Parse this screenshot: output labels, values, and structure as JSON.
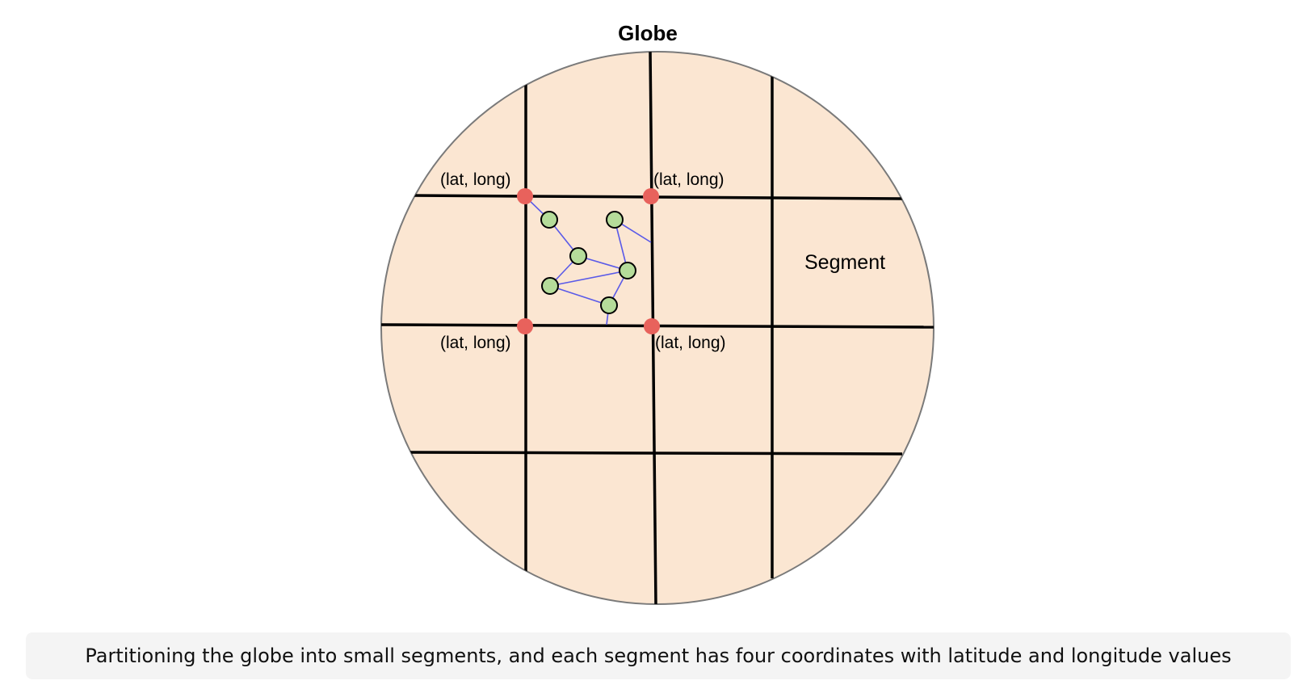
{
  "title": "Globe",
  "segment_label": "Segment",
  "corner_labels": [
    "(lat, long)",
    "(lat, long)",
    "(lat, long)",
    "(lat, long)"
  ],
  "caption": "Partitioning the globe into small segments, and each segment has four coordinates with latitude and longitude values",
  "colors": {
    "globe_fill": "#fbe6d2",
    "globe_stroke": "#7a7a7a",
    "grid_line": "#000000",
    "corner_point": "#e8625c",
    "inner_point": "#b5dc9a",
    "connection_line": "#5a5ae8"
  }
}
